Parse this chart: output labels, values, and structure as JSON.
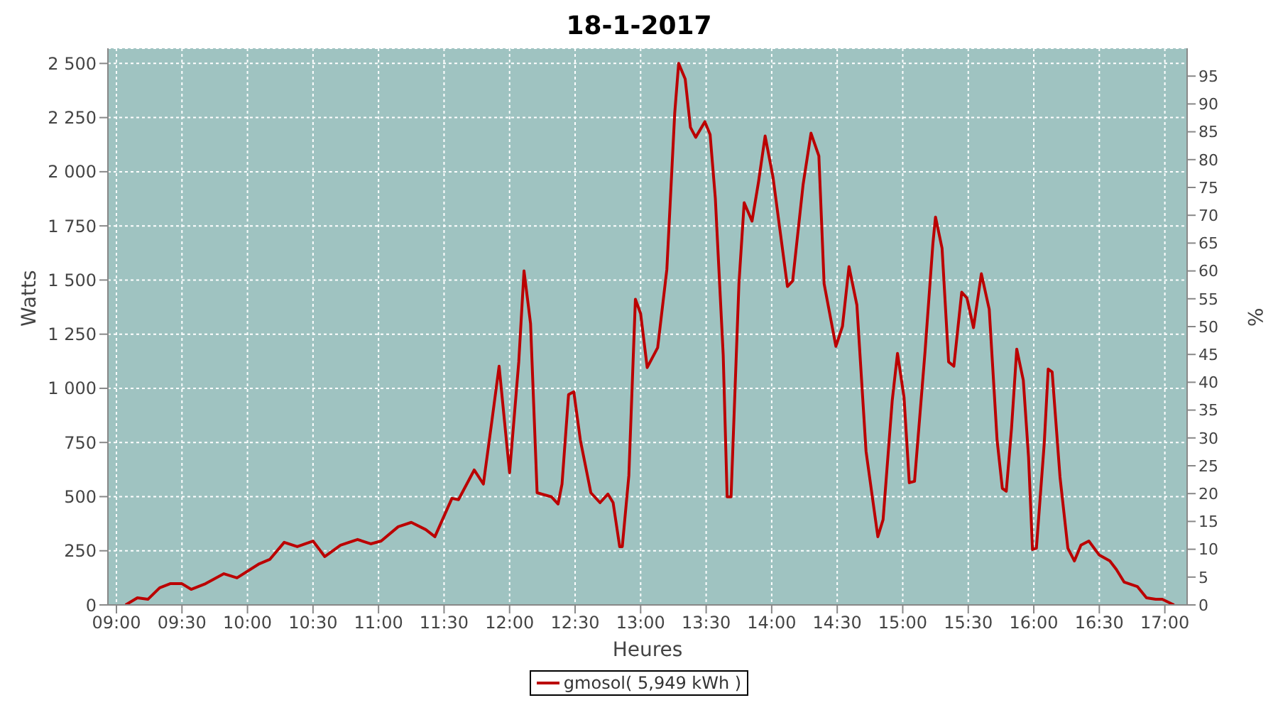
{
  "chart_data": {
    "type": "line",
    "title": "18-1-2017",
    "xlabel": "Heures",
    "ylabel": "Watts",
    "y2label": "%",
    "x": [
      9.07,
      9.16,
      9.24,
      9.33,
      9.41,
      9.5,
      9.57,
      9.68,
      9.82,
      9.92,
      10.09,
      10.17,
      10.28,
      10.38,
      10.5,
      10.59,
      10.71,
      10.84,
      10.94,
      11.02,
      11.15,
      11.25,
      11.36,
      11.43,
      11.56,
      11.61,
      11.73,
      11.8,
      11.86,
      11.92,
      11.97,
      12.0,
      12.07,
      12.11,
      12.16,
      12.21,
      12.32,
      12.37,
      12.4,
      12.45,
      12.49,
      12.54,
      12.62,
      12.69,
      12.75,
      12.79,
      12.84,
      12.86,
      12.91,
      12.96,
      13.0,
      13.05,
      13.13,
      13.2,
      13.26,
      13.29,
      13.34,
      13.38,
      13.42,
      13.49,
      13.53,
      13.57,
      13.63,
      13.66,
      13.69,
      13.75,
      13.79,
      13.85,
      13.9,
      13.95,
      14.01,
      14.12,
      14.16,
      14.24,
      14.3,
      14.36,
      14.4,
      14.49,
      14.54,
      14.59,
      14.65,
      14.72,
      14.81,
      14.85,
      14.92,
      14.96,
      15.01,
      15.05,
      15.09,
      15.17,
      15.23,
      15.25,
      15.3,
      15.35,
      15.39,
      15.45,
      15.49,
      15.54,
      15.6,
      15.66,
      15.72,
      15.76,
      15.79,
      15.83,
      15.87,
      15.92,
      15.96,
      15.99,
      16.02,
      16.08,
      16.11,
      16.14,
      16.2,
      16.26,
      16.31,
      16.36,
      16.42,
      16.5,
      16.58,
      16.63,
      16.69,
      16.79,
      16.86,
      16.93,
      16.98,
      17.07
    ],
    "series": [
      {
        "name": "gmosol( 5,949 kWh )",
        "color": "#bb0000",
        "values": [
          0,
          33,
          26,
          79,
          98,
          98,
          72,
          98,
          144,
          125,
          190,
          210,
          289,
          269,
          295,
          223,
          276,
          302,
          282,
          295,
          361,
          381,
          348,
          315,
          492,
          486,
          623,
          558,
          827,
          1102,
          794,
          610,
          1122,
          1542,
          1299,
          518,
          499,
          466,
          558,
          971,
          984,
          761,
          518,
          472,
          512,
          472,
          269,
          269,
          597,
          1411,
          1345,
          1096,
          1188,
          1549,
          2270,
          2500,
          2428,
          2205,
          2159,
          2231,
          2172,
          1877,
          1155,
          499,
          499,
          1483,
          1857,
          1772,
          1955,
          2165,
          1975,
          1470,
          1496,
          1942,
          2178,
          2073,
          1483,
          1194,
          1286,
          1562,
          1385,
          709,
          315,
          394,
          945,
          1161,
          958,
          564,
          571,
          1168,
          1667,
          1791,
          1647,
          1122,
          1102,
          1444,
          1417,
          1280,
          1529,
          1365,
          761,
          538,
          525,
          814,
          1181,
          1037,
          682,
          256,
          262,
          748,
          1089,
          1076,
          591,
          262,
          203,
          276,
          295,
          230,
          203,
          164,
          105,
          85,
          33,
          26,
          26,
          0
        ]
      }
    ],
    "xlim": [
      8.935,
      17.17
    ],
    "xticks": [
      {
        "value": 9,
        "label": "09:00"
      },
      {
        "value": 9.5,
        "label": "09:30"
      },
      {
        "value": 10,
        "label": "10:00"
      },
      {
        "value": 10.5,
        "label": "10:30"
      },
      {
        "value": 11,
        "label": "11:00"
      },
      {
        "value": 11.5,
        "label": "11:30"
      },
      {
        "value": 12,
        "label": "12:00"
      },
      {
        "value": 12.5,
        "label": "12:30"
      },
      {
        "value": 13,
        "label": "13:00"
      },
      {
        "value": 13.5,
        "label": "13:30"
      },
      {
        "value": 14,
        "label": "14:00"
      },
      {
        "value": 14.5,
        "label": "14:30"
      },
      {
        "value": 15,
        "label": "15:00"
      },
      {
        "value": 15.5,
        "label": "15:30"
      },
      {
        "value": 16,
        "label": "16:00"
      },
      {
        "value": 16.5,
        "label": "16:30"
      },
      {
        "value": 17,
        "label": "17:00"
      }
    ],
    "ylim": [
      0,
      2570
    ],
    "yticks": [
      0,
      250,
      500,
      750,
      {
        "value": 1000,
        "label": "1 000"
      },
      {
        "value": 1250,
        "label": "1 250"
      },
      {
        "value": 1500,
        "label": "1 500"
      },
      {
        "value": 1750,
        "label": "1 750"
      },
      {
        "value": 2000,
        "label": "2 000"
      },
      {
        "value": 2250,
        "label": "2 250"
      },
      {
        "value": 2500,
        "label": "2 500"
      }
    ],
    "y2lim": [
      0,
      100
    ],
    "y2ticks": [
      0,
      5,
      10,
      15,
      20,
      25,
      30,
      35,
      40,
      45,
      50,
      55,
      60,
      65,
      70,
      75,
      80,
      85,
      90,
      95
    ],
    "grid": true,
    "legend": "bottom",
    "marker": "none",
    "line_style": "solid"
  }
}
